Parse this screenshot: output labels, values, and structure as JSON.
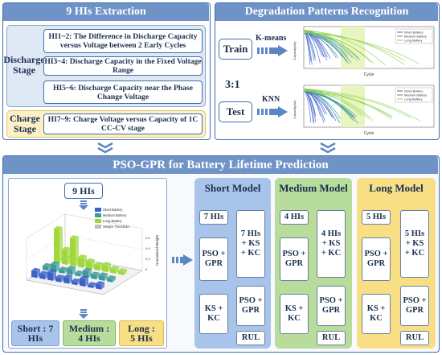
{
  "extraction": {
    "title": "9 HIs Extraction",
    "discharge_label": "Discharge Stage",
    "charge_label": "Charge Stage",
    "hi_items": [
      "HI1~2: The Difference in Discharge Capacity versus Voltage between 2 Early Cycles",
      "HI3~4: Discharge Capacity in the Fixed Voltage Range",
      "HI5~6: Discharge Capacity near the Phase Change Voltage",
      "HI7~9: Charge Voltage versus Capacity of 1C CC-CV stage"
    ]
  },
  "recognition": {
    "title": "Degradation Patterns Recognition",
    "train_label": "Train",
    "test_label": "Test",
    "ratio": "3:1",
    "kmeans": "K-means",
    "knn": "KNN",
    "plot_ylabel": "Capacity(Ah)",
    "plot_xlabel": "Cycle",
    "legend": [
      "Short Battery",
      "Medium Battery",
      "Long Battery"
    ],
    "colors": {
      "short": "#3a62c9",
      "medium": "#3d9a9a",
      "long": "#8fd14f",
      "highlight": "#e9f5c0"
    }
  },
  "pso": {
    "title": "PSO-GPR for Battery Lifetime Prediction",
    "nine_his": "9 HIs",
    "chart_legend": [
      "Short Battery",
      "Medium Battery",
      "Long Battery",
      "Weight Threshold"
    ],
    "zlabel": "Normalized Weight",
    "short_summary": "Short : 7 HIs",
    "medium_summary": "Medium : 4 HIs",
    "long_summary": "Long : 5 HIs",
    "models": [
      {
        "title": "Short Model",
        "left_col": [
          "7 HIs",
          "PSO + GPR",
          "KS + KC"
        ],
        "right_col": [
          "7 HIs + KS + KC",
          "PSO + GPR",
          "RUL"
        ]
      },
      {
        "title": "Medium Model",
        "left_col": [
          "4 HIs",
          "PSO + GPR",
          "KS + KC"
        ],
        "right_col": [
          "4 HIs + KS + KC",
          "PSO + GPR",
          "RUL"
        ]
      },
      {
        "title": "Long Model",
        "left_col": [
          "5 HIs",
          "PSO + GPR",
          "KS + KC"
        ],
        "right_col": [
          "5 HIs + KS + KC",
          "PSO + GPR",
          "RUL"
        ]
      }
    ]
  }
}
